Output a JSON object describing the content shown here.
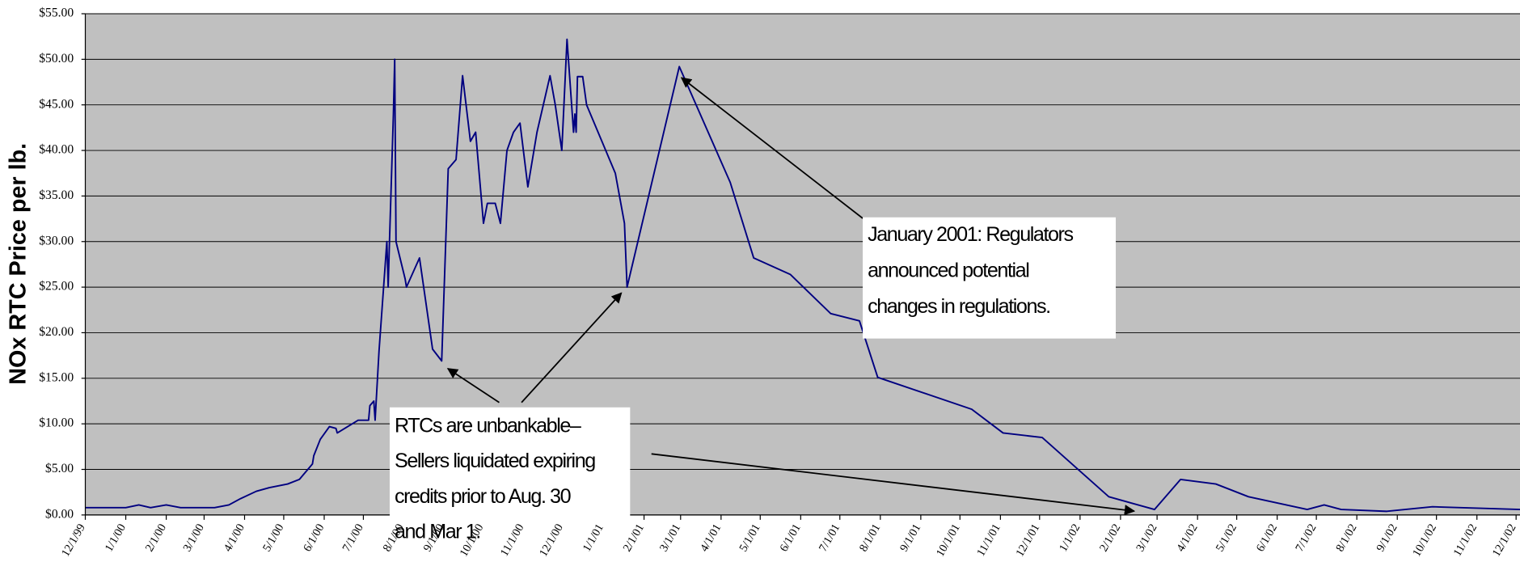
{
  "chart_data": {
    "type": "line",
    "y_label": "NOx RTC Price per lb.",
    "xlim": [
      "12/1/99",
      "12/4/02"
    ],
    "xticks": [
      "12/1/99",
      "1/1/00",
      "2/1/00",
      "3/1/00",
      "4/1/00",
      "5/1/00",
      "6/1/00",
      "7/1/00",
      "8/1/00",
      "9/1/00",
      "10/1/00",
      "11/1/00",
      "12/1/00",
      "1/1/01",
      "2/1/01",
      "3/1/01",
      "4/1/01",
      "5/1/01",
      "6/1/01",
      "7/1/01",
      "8/1/01",
      "9/1/01",
      "10/1/01",
      "11/1/01",
      "12/1/01",
      "1/1/02",
      "2/1/02",
      "3/1/02",
      "4/1/02",
      "5/1/02",
      "6/1/02",
      "7/1/02",
      "8/1/02",
      "9/1/02",
      "10/1/02",
      "11/1/02",
      "12/1/02"
    ],
    "ylim": [
      0,
      55
    ],
    "yticks": [
      {
        "value": 0,
        "label": "$0.00"
      },
      {
        "value": 5,
        "label": "$5.00"
      },
      {
        "value": 10,
        "label": "$10.00"
      },
      {
        "value": 15,
        "label": "$15.00"
      },
      {
        "value": 20,
        "label": "$20.00"
      },
      {
        "value": 25,
        "label": "$25.00"
      },
      {
        "value": 30,
        "label": "$30.00"
      },
      {
        "value": 35,
        "label": "$35.00"
      },
      {
        "value": 40,
        "label": "$40.00"
      },
      {
        "value": 45,
        "label": "$45.00"
      },
      {
        "value": 50,
        "label": "$50.00"
      },
      {
        "value": 55,
        "label": "$55.00"
      }
    ],
    "grid": true,
    "x": [
      "12/1/99",
      "1/1/00",
      "1/11/00",
      "1/20/00",
      "2/1/00",
      "2/12/00",
      "3/9/00",
      "3/20/00",
      "3/29/00",
      "4/10/00",
      "4/20/00",
      "5/4/00",
      "5/13/00",
      "5/23/00",
      "5/24/00",
      "5/29/00",
      "6/5/00",
      "6/10/00",
      "6/11/00",
      "6/27/00",
      "7/5/00",
      "7/6/00",
      "7/9/00",
      "7/10/00",
      "7/13/00",
      "7/19/00",
      "7/20/00",
      "7/21/00",
      "7/24/00",
      "7/25/00",
      "7/26/00",
      "8/2/00",
      "8/3/00",
      "8/13/00",
      "8/23/00",
      "8/30/00",
      "9/4/00",
      "9/10/00",
      "9/15/00",
      "9/21/00",
      "9/25/00",
      "10/1/00",
      "10/4/00",
      "10/10/00",
      "10/14/00",
      "10/19/00",
      "10/24/00",
      "10/29/00",
      "11/4/00",
      "11/11/00",
      "11/21/00",
      "11/25/00",
      "11/30/00",
      "12/4/00",
      "12/9/00",
      "12/10/00",
      "12/11/00",
      "12/12/00",
      "12/16/00",
      "12/19/00",
      "1/10/01",
      "1/17/01",
      "1/19/01",
      "2/28/01",
      "4/8/01",
      "4/26/01",
      "5/24/01",
      "6/24/01",
      "7/16/01",
      "7/30/01",
      "10/10/01",
      "11/3/01",
      "12/3/01",
      "1/23/02",
      "2/27/02",
      "3/19/02",
      "4/15/02",
      "5/10/02",
      "6/24/02",
      "7/7/02",
      "7/20/02",
      "8/24/02",
      "9/28/02",
      "12/4/02"
    ],
    "series": [
      {
        "color": "#000080",
        "values": [
          0.8,
          0.8,
          1.1,
          0.8,
          1.1,
          0.8,
          0.8,
          1.1,
          1.8,
          2.6,
          3,
          3.4,
          3.9,
          5.6,
          6.5,
          8.3,
          9.7,
          9.5,
          9,
          10.4,
          10.4,
          12,
          12.5,
          10.4,
          18,
          30,
          25,
          30,
          44,
          50,
          30,
          25.9,
          25,
          28.2,
          18.2,
          16.9,
          38,
          39,
          48.2,
          41,
          42,
          32,
          34.2,
          34.2,
          32,
          40,
          42,
          43,
          36,
          42,
          48.2,
          45,
          40,
          52.2,
          42,
          44,
          42,
          48.1,
          48.1,
          45,
          37.5,
          32,
          25,
          49.2,
          36.5,
          28.2,
          26.4,
          22.1,
          21.3,
          15.1,
          11.6,
          9,
          8.5,
          2,
          0.6,
          3.9,
          3.4,
          2,
          0.6,
          1.1,
          0.6,
          0.4,
          0.9,
          0.6
        ]
      }
    ],
    "annotations": [
      {
        "lines": [
          "January 2001: Regulators",
          "announced potential",
          "changes in regulations."
        ]
      },
      {
        "lines": [
          "RTCs are unbankable–",
          "Sellers liquidated expiring",
          "credits prior to Aug. 30",
          "and Mar 1."
        ]
      }
    ]
  }
}
